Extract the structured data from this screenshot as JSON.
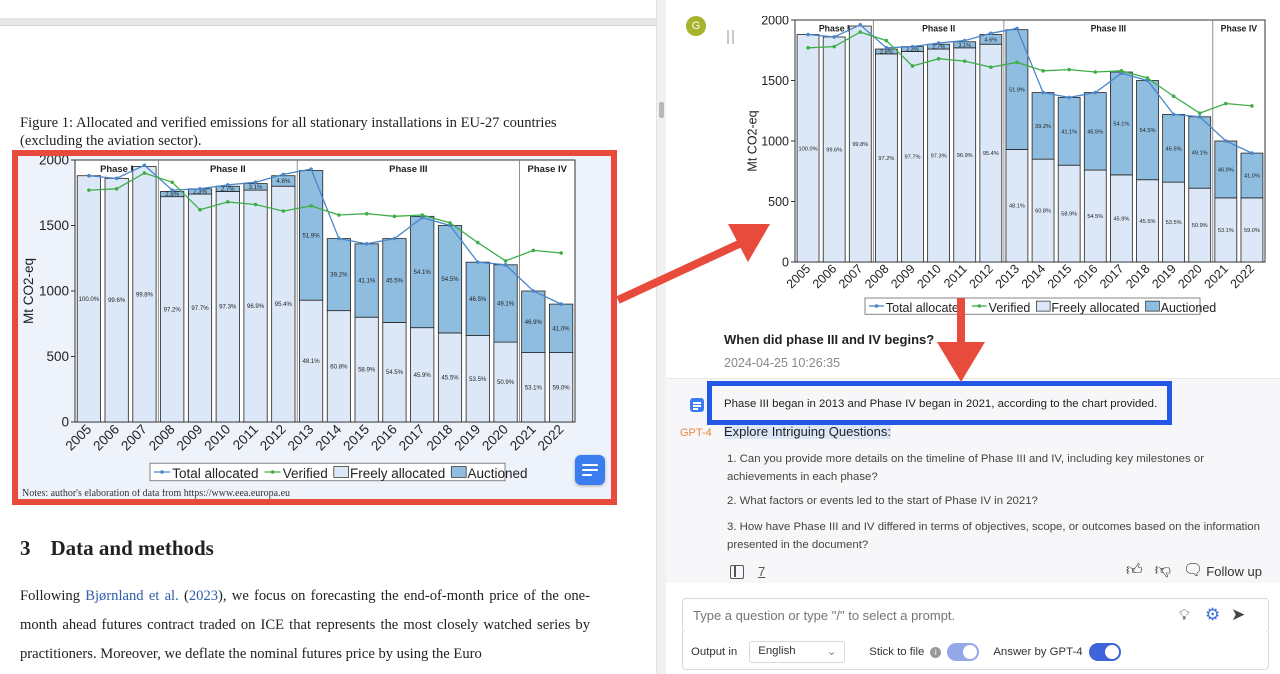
{
  "document": {
    "figure_caption": "Figure 1: Allocated and verified emissions for all stationary installations in EU-27 countries (excluding the aviation sector).",
    "notes_line": "Notes: author's elaboration of data from https://www.eea.europa.eu",
    "section_number": "3",
    "section_title": "Data and methods",
    "para_lead": "Following ",
    "para_cite_author": "Bjørnland et al.",
    "para_cite_year_open": " (",
    "para_cite_year": "2023",
    "para_rest": "), we focus on forecasting the end-of-month price of the one-month ahead futures contract traded on ICE that represents the most closely watched series by practitioners. Moreover, we deflate the nominal futures price by using the Euro"
  },
  "chart_data": {
    "type": "bar",
    "ylabel": "Mt CO2-eq",
    "xlabel": "",
    "ylim": [
      0,
      2000
    ],
    "yticks": [
      0,
      500,
      1000,
      1500,
      2000
    ],
    "categories": [
      "2005",
      "2006",
      "2007",
      "2008",
      "2009",
      "2010",
      "2011",
      "2012",
      "2013",
      "2014",
      "2015",
      "2016",
      "2017",
      "2018",
      "2019",
      "2020",
      "2021",
      "2022"
    ],
    "phases": [
      {
        "label": "Phase I",
        "start": "2005",
        "end": "2007"
      },
      {
        "label": "Phase II",
        "start": "2008",
        "end": "2012"
      },
      {
        "label": "Phase III",
        "start": "2013",
        "end": "2020"
      },
      {
        "label": "Phase IV",
        "start": "2021",
        "end": "2022"
      }
    ],
    "series": [
      {
        "name": "Freely allocated",
        "kind": "stacked-bar",
        "color": "#dce8f7",
        "values": [
          1880,
          1860,
          1950,
          1720,
          1740,
          1760,
          1770,
          1800,
          930,
          850,
          800,
          760,
          720,
          680,
          660,
          610,
          530,
          530
        ]
      },
      {
        "name": "Auctioned",
        "kind": "stacked-bar",
        "color": "#8fbde0",
        "values": [
          0,
          0,
          0,
          40,
          40,
          40,
          50,
          80,
          990,
          550,
          560,
          640,
          850,
          820,
          560,
          590,
          470,
          370
        ]
      },
      {
        "name": "Total allocated",
        "kind": "line",
        "color": "#4a86c8",
        "values": [
          1880,
          1860,
          1960,
          1770,
          1780,
          1810,
          1830,
          1890,
          1930,
          1400,
          1360,
          1400,
          1560,
          1500,
          1220,
          1200,
          1000,
          900
        ]
      },
      {
        "name": "Verified",
        "kind": "line",
        "color": "#3fae49",
        "values": [
          1770,
          1780,
          1900,
          1830,
          1620,
          1680,
          1660,
          1610,
          1650,
          1580,
          1590,
          1570,
          1580,
          1520,
          1370,
          1230,
          1310,
          1290
        ]
      }
    ],
    "bar_labels": {
      "freely": [
        "100.0%",
        "99.6%",
        "99.8%",
        "97.2%",
        "97.7%",
        "97.3%",
        "96.9%",
        "95.4%",
        "48.1%",
        "60.8%",
        "58.9%",
        "54.5%",
        "45.9%",
        "45.5%",
        "53.5%",
        "50.9%",
        "53.1%",
        "59.0%"
      ],
      "auctioned": [
        "",
        "",
        "",
        "2.8%",
        "2.3%",
        "2.7%",
        "3.1%",
        "4.6%",
        "51.9%",
        "39.2%",
        "41.1%",
        "45.5%",
        "54.1%",
        "54.5%",
        "46.5%",
        "49.1%",
        "46.9%",
        "41.0%"
      ]
    },
    "legend": [
      "Total allocated",
      "Verified",
      "Freely allocated",
      "Auctioned"
    ],
    "legend_position": "bottom",
    "grid": false
  },
  "chat": {
    "avatar_letter": "G",
    "question": "When did phase III and IV begins?",
    "question_time": "2024-04-25 10:26:35",
    "model_tag": "GPT-4",
    "answer": "Phase III began in 2013 and Phase IV began in 2021, according to the chart provided.",
    "explore_title": "Explore Intriguing Questions:",
    "followups": [
      "1. Can you provide more details on the timeline of Phase III and IV, including key milestones or achievements in each phase?",
      "2. What factors or events led to the start of Phase IV in 2021?",
      "3. How have Phase III and IV differed in terms of objectives, scope, or outcomes based on the information presented in the document?"
    ],
    "ref_count": "7",
    "follow_up_label": "Follow up",
    "input_placeholder": "Type a question or type \"/\" to select a prompt.",
    "output_in_label": "Output in",
    "output_language": "English",
    "stick_to_file_label": "Stick to file",
    "answer_by_label": "Answer by GPT-4"
  },
  "colors": {
    "highlight_red": "#e84b3c",
    "highlight_blue": "#2457e6",
    "accent_blue": "#3f63d8"
  }
}
